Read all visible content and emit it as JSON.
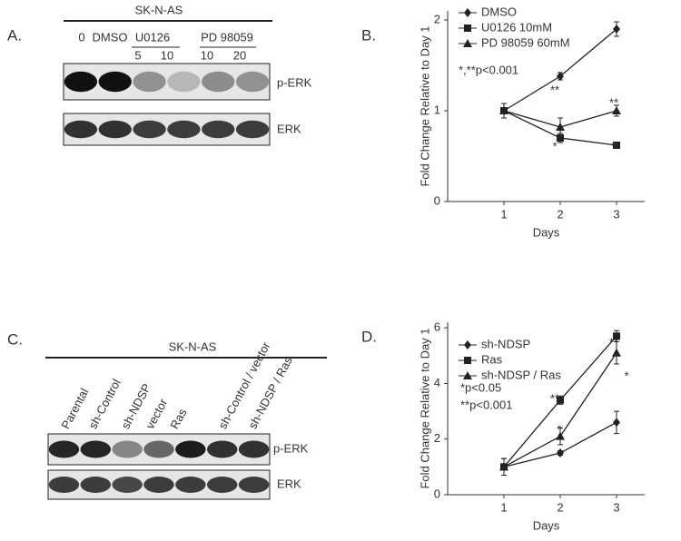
{
  "panel_labels": [
    "A.",
    "B.",
    "C.",
    "D."
  ],
  "blot_A": {
    "title": "SK-N-AS",
    "lanes": [
      "0",
      "DMSO"
    ],
    "groups": [
      {
        "label": "U0126",
        "doses": [
          "5",
          "10"
        ]
      },
      {
        "label": "PD 98059",
        "doses": [
          "10",
          "20"
        ]
      }
    ],
    "bands": [
      "p-ERK",
      "ERK"
    ]
  },
  "blot_C": {
    "title": "SK-N-AS",
    "lanes": [
      "Parental",
      "sh-Control",
      "sh-NDSP",
      "vector",
      "Ras",
      "sh-Control / vector",
      "sh-NDSP / Ras"
    ],
    "bands": [
      "p-ERK",
      "ERK"
    ]
  },
  "chart_data": [
    {
      "type": "line",
      "x_label": "Days",
      "y_label": "Fold Change Relative to Day 1",
      "x": [
        1,
        2,
        3
      ],
      "xlim": [
        0,
        3.5
      ],
      "xticks": [
        1,
        2,
        3
      ],
      "ylim": [
        0,
        2.1
      ],
      "yticks": [
        0,
        1,
        2
      ],
      "series": [
        {
          "name": "DMSO",
          "color": "#222222",
          "marker": "diamond",
          "values": [
            1,
            1.38,
            1.9
          ],
          "errors": [
            0.08,
            0.04,
            0.08
          ]
        },
        {
          "name": "U0126 10mM",
          "color": "#222222",
          "marker": "square",
          "values": [
            1,
            0.7,
            0.62
          ],
          "errors": [
            0.08,
            0.05,
            0.03
          ]
        },
        {
          "name": "PD 98059 60mM",
          "color": "#222222",
          "marker": "triangle",
          "values": [
            1,
            0.82,
            1.0
          ],
          "errors": [
            0.08,
            0.1,
            0.06
          ]
        }
      ],
      "annotations": [
        "*,**p<0.001",
        "**",
        "*",
        "**",
        "*"
      ]
    },
    {
      "type": "line",
      "x_label": "Days",
      "y_label": "Fold Change Relative to Day 1",
      "x": [
        1,
        2,
        3
      ],
      "xlim": [
        0,
        3.5
      ],
      "xticks": [
        1,
        2,
        3
      ],
      "ylim": [
        0,
        6.2
      ],
      "yticks": [
        0,
        2,
        4,
        6
      ],
      "series": [
        {
          "name": "sh-NDSP",
          "color": "#222222",
          "marker": "diamond",
          "values": [
            1,
            1.5,
            2.6
          ],
          "errors": [
            0.3,
            0.08,
            0.4
          ]
        },
        {
          "name": "Ras",
          "color": "#222222",
          "marker": "square",
          "values": [
            1,
            3.4,
            5.7
          ],
          "errors": [
            0.3,
            0.15,
            0.2
          ]
        },
        {
          "name": "sh-NDSP / Ras",
          "color": "#222222",
          "marker": "triangle",
          "values": [
            1,
            2.1,
            5.1
          ],
          "errors": [
            0.3,
            0.3,
            0.4
          ]
        }
      ],
      "annotations": [
        "*p<0.05",
        "**p<0.001",
        "**",
        "*",
        "**",
        "*"
      ]
    }
  ]
}
